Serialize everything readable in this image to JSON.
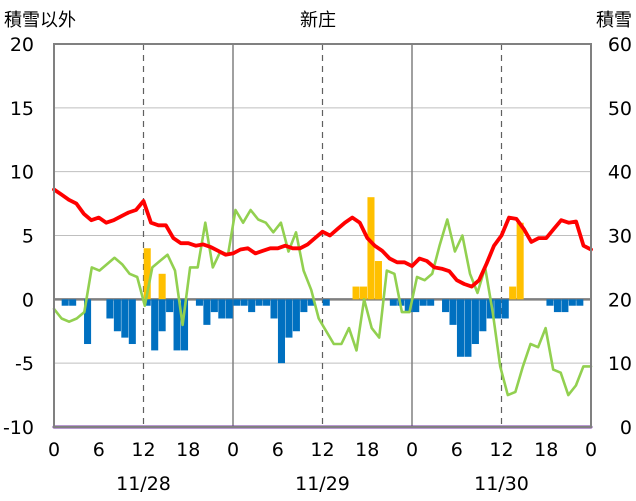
{
  "chart_data": {
    "type": "bar",
    "title": "新庄",
    "y_left_label": "積雪以外",
    "y_right_label": "積雪",
    "y_left_range": [
      -10,
      20
    ],
    "y_left_ticks": [
      "20",
      "15",
      "10",
      "5",
      "0",
      "-5",
      "-10"
    ],
    "y_right_range": [
      0,
      60
    ],
    "y_right_ticks": [
      "60",
      "50",
      "40",
      "30",
      "20",
      "10",
      "0"
    ],
    "x_range_hours": [
      0,
      72
    ],
    "x_tick_labels": [
      "0",
      "6",
      "12",
      "18",
      "0",
      "6",
      "12",
      "18",
      "0",
      "6",
      "12",
      "18",
      "0"
    ],
    "date_labels": [
      "11/28",
      "11/29",
      "11/30"
    ],
    "grid": "dashed vertical lines at hour 12 of each day; solid lines at day boundaries",
    "colors": {
      "temperature": "#ff0000",
      "snow_depth": "#92d050",
      "precipitation": "#ffc000",
      "sunshine": "#0070c0",
      "snowfall": "#7030a0",
      "zero_line": "#7f7f7f",
      "frame": "#808080"
    },
    "series": [
      {
        "axis": "left",
        "kind": "line",
        "color_key": "temperature",
        "values": [
          8.6,
          8.2,
          7.8,
          7.5,
          6.7,
          6.2,
          6.4,
          6.0,
          6.2,
          6.5,
          6.8,
          7.0,
          7.7,
          6.0,
          5.8,
          5.8,
          4.8,
          4.4,
          4.4,
          4.2,
          4.3,
          4.1,
          3.8,
          3.5,
          3.6,
          3.9,
          4.0,
          3.6,
          3.8,
          4.0,
          4.0,
          4.2,
          4.0,
          4.0,
          4.3,
          4.8,
          5.3,
          5.0,
          5.5,
          6.0,
          6.4,
          6.0,
          4.8,
          4.2,
          3.8,
          3.2,
          2.9,
          2.9,
          2.6,
          3.2,
          3.0,
          2.5,
          2.4,
          2.2,
          1.5,
          1.2,
          1.0,
          1.5,
          2.8,
          4.2,
          5.0,
          6.4,
          6.3,
          5.5,
          4.5,
          4.8,
          4.8,
          5.5,
          6.2,
          6.0,
          6.1,
          4.2,
          3.9
        ]
      },
      {
        "axis": "right",
        "kind": "line",
        "color_key": "snow_depth",
        "values": [
          18.5,
          17,
          16.5,
          17,
          18,
          25,
          24.5,
          25.5,
          26.5,
          25.5,
          24,
          23.5,
          19,
          25,
          26,
          27,
          24.5,
          16,
          25,
          25,
          32,
          25,
          27.5,
          27,
          34,
          32,
          34,
          32.5,
          32,
          30.5,
          32,
          27.5,
          30.5,
          24.5,
          21.5,
          17,
          15,
          13,
          13,
          15.5,
          12,
          20,
          15.5,
          14,
          24.5,
          24,
          18,
          18,
          23.5,
          23,
          24,
          28.5,
          32.5,
          27.5,
          30,
          24,
          21,
          25,
          18,
          9.5,
          5,
          5.5,
          9.5,
          13,
          12.5,
          15.5,
          9,
          8.5,
          5,
          6.5,
          9.5,
          9.5
        ]
      },
      {
        "axis": "left",
        "kind": "bar",
        "color_key": "precipitation",
        "values": [
          0,
          0,
          0,
          0,
          0,
          0,
          0,
          0,
          0,
          0,
          0,
          0,
          4,
          0,
          2,
          0,
          0,
          0,
          0,
          0,
          0,
          0,
          0,
          0,
          0,
          0,
          0,
          0,
          0,
          0,
          0,
          0,
          0,
          0,
          0,
          0,
          0,
          0,
          0,
          0,
          1,
          1,
          8,
          3,
          0,
          0,
          0,
          0,
          0,
          0,
          0,
          0,
          0,
          0,
          0,
          0,
          0,
          0,
          0,
          0,
          0,
          1,
          6,
          0,
          0,
          0,
          0,
          0,
          0,
          0,
          0,
          0
        ]
      },
      {
        "axis": "left",
        "kind": "bar",
        "color_key": "sunshine",
        "values": [
          0,
          -0.5,
          -0.5,
          0,
          -3.5,
          0,
          0,
          -1.5,
          -2.5,
          -3,
          -3.5,
          0,
          -0.5,
          -4,
          -2.5,
          -1,
          -4,
          -4,
          0,
          -0.5,
          -2,
          -1,
          -1.5,
          -1.5,
          -0.5,
          -0.5,
          -1,
          -0.5,
          -0.5,
          -1.5,
          -5,
          -3,
          -2.5,
          -1,
          -0.5,
          0,
          -0.5,
          0,
          0,
          0,
          0,
          0,
          0,
          0,
          0,
          -0.5,
          -0.5,
          -1,
          -1,
          -0.5,
          -0.5,
          0,
          -1,
          -2,
          -4.5,
          -4.5,
          -3.5,
          -2.5,
          -1.5,
          -1.5,
          -1.5,
          0,
          0,
          0,
          0,
          0,
          -0.5,
          -1,
          -1,
          -0.5,
          -0.5,
          0
        ]
      },
      {
        "axis": "left",
        "kind": "line",
        "color_key": "snowfall",
        "values": [
          -10,
          -10,
          -10,
          -10,
          -10,
          -10,
          -10,
          -10,
          -10,
          -10,
          -10,
          -10,
          -10,
          -10,
          -10,
          -10,
          -10,
          -10,
          -10,
          -10,
          -10,
          -10,
          -10,
          -10,
          -10,
          -10,
          -10,
          -10,
          -10,
          -10,
          -10,
          -10,
          -10,
          -10,
          -10,
          -10,
          -10,
          -10,
          -10,
          -10,
          -10,
          -10,
          -10,
          -10,
          -10,
          -10,
          -10,
          -10,
          -10,
          -10,
          -10,
          -10,
          -10,
          -10,
          -10,
          -10,
          -10,
          -10,
          -10,
          -10,
          -10,
          -10,
          -10,
          -10,
          -10,
          -10,
          -10,
          -10,
          -10,
          -10,
          -10,
          -10,
          -10
        ]
      }
    ]
  }
}
